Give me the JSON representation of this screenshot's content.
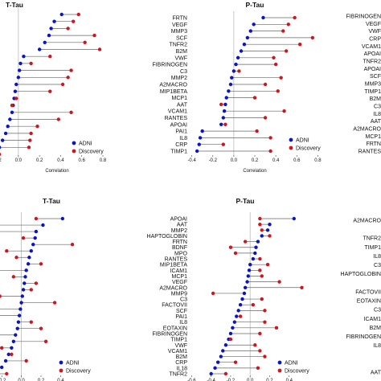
{
  "colors": {
    "adni": "#0a14c8",
    "discovery": "#d2141e",
    "segment": "#666666",
    "zero_line": "#bbbbbb",
    "axis": "#444444"
  },
  "chart_data": [
    {
      "type": "dot-plot",
      "panel": "top-left",
      "title": "T-Tau",
      "xlabel": "Correlation",
      "xlim": [
        -0.25,
        0.8
      ],
      "xticks": [
        "-0.2",
        "0.0",
        "0.2",
        "0.4",
        "0.6",
        "0.8"
      ],
      "show_y_labels": false,
      "legend": [
        "ADNI",
        "Discovery"
      ],
      "legend_position": "bottom-right",
      "categories": [
        "",
        "",
        "",
        "",
        "",
        "",
        "",
        "",
        "",
        "",
        "",
        "",
        "",
        "",
        "",
        "",
        "",
        "",
        "",
        "",
        ""
      ],
      "series": [
        {
          "name": "ADNI",
          "values": [
            0.41,
            0.34,
            0.31,
            0.29,
            0.25,
            0.2,
            0.05,
            0.02,
            0.01,
            0.0,
            -0.02,
            -0.03,
            -0.04,
            -0.05,
            -0.06,
            -0.08,
            -0.1,
            -0.12,
            -0.15,
            -0.18,
            -0.22
          ]
        },
        {
          "name": "Discovery",
          "values": [
            0.57,
            0.52,
            0.47,
            0.72,
            0.63,
            0.77,
            0.3,
            0.12,
            0.5,
            0.47,
            0.42,
            0.3,
            -0.02,
            -0.06,
            0.5,
            0.38,
            0.18,
            0.12,
            0.11,
            0.1,
            -0.18
          ]
        }
      ]
    },
    {
      "type": "dot-plot",
      "panel": "top-center",
      "title": "P-Tau",
      "xlabel": "Correlation",
      "xlim": [
        -0.42,
        0.82
      ],
      "xticks": [
        "-0.4",
        "-0.2",
        "0.0",
        "0.2",
        "0.4",
        "0.6",
        "0.8"
      ],
      "show_y_labels": true,
      "legend": [
        "ADNI",
        "Discovery"
      ],
      "legend_position": "bottom-right",
      "categories": [
        "FRTN",
        "VEGF",
        "MMP3",
        "SCF",
        "TNFR2",
        "B2M",
        "VWF",
        "FIBRINOGEN",
        "C3",
        "MMP2",
        "A2MACRO",
        "MIP1BETA",
        "MCP1",
        "AAT",
        "VCAM1",
        "RANTES",
        "APOAI",
        "PAI1",
        "IL8",
        "CRP",
        "TIMP1"
      ],
      "series": [
        {
          "name": "ADNI",
          "values": [
            0.28,
            0.19,
            0.16,
            0.13,
            0.1,
            0.07,
            0.04,
            0.02,
            0.0,
            -0.02,
            -0.03,
            -0.05,
            -0.07,
            -0.08,
            -0.09,
            -0.1,
            -0.12,
            -0.3,
            -0.32,
            -0.33,
            -0.35
          ]
        },
        {
          "name": "Discovery",
          "values": [
            0.58,
            0.52,
            0.47,
            0.75,
            0.63,
            0.5,
            0.38,
            0.4,
            0.05,
            0.45,
            0.3,
            0.42,
            0.2,
            -0.12,
            0.48,
            0.3,
            -0.08,
            0.22,
            0.35,
            -0.1,
            0.35
          ]
        }
      ]
    },
    {
      "type": "dot-plot",
      "panel": "bottom-left",
      "title": "T-Tau",
      "xlabel": "Correlation",
      "xlim": [
        -0.3,
        0.7
      ],
      "xticks": [
        "-0.2",
        "0.0",
        "0.2",
        "0.4"
      ],
      "show_y_labels": false,
      "legend": [
        "ADNI",
        "Discovery"
      ],
      "legend_position": "bottom-right",
      "categories": [
        "",
        "",
        "",
        "",
        "",
        "",
        "",
        "",
        "",
        "",
        "",
        "",
        "",
        "",
        "",
        "",
        "",
        "",
        "",
        "",
        "",
        "",
        "",
        "",
        ""
      ],
      "series": [
        {
          "name": "ADNI",
          "values": [
            0.42,
            0.22,
            0.15,
            0.14,
            0.12,
            0.1,
            0.08,
            0.07,
            0.05,
            0.04,
            0.03,
            0.02,
            0.01,
            0.0,
            -0.01,
            -0.02,
            -0.03,
            -0.04,
            -0.06,
            -0.08,
            -0.1,
            -0.13,
            -0.16,
            -0.2,
            -0.25
          ]
        },
        {
          "name": "Discovery",
          "values": [
            0.15,
            -0.38,
            -0.35,
            0.02,
            0.52,
            -0.15,
            -0.05,
            0.2,
            -0.3,
            -0.08,
            0.15,
            0.1,
            -0.22,
            0.34,
            -0.3,
            -0.25,
            0.1,
            0.2,
            -0.3,
            0.25,
            -0.2,
            -0.1,
            0.05,
            -0.28,
            -0.15
          ]
        }
      ]
    },
    {
      "type": "dot-plot",
      "panel": "bottom-center",
      "title": "P-Tau",
      "xlabel": "Correlation",
      "xlim": [
        -0.62,
        0.6
      ],
      "xticks": [
        "-0.6",
        "-0.4",
        "-0.2",
        "0.0",
        "0.2",
        "0.4"
      ],
      "show_y_labels": true,
      "legend": [
        "ADNI",
        "Discovery"
      ],
      "legend_position": "bottom-right",
      "categories": [
        "APOAI",
        "AAT",
        "MMP2",
        "HAPTOGLOBIN",
        "FRTN",
        "BDNF",
        "MPO",
        "RANTES",
        "MIP1BETA",
        "ICAM1",
        "MCP1",
        "VEGF",
        "A2MACRO",
        "MMP9",
        "C3",
        "FACTOVII",
        "SCF",
        "PAI1",
        "IL8",
        "EOTAXIN",
        "FIBRINOGEN",
        "TIMP1",
        "VWF",
        "VCAM1",
        "B2M",
        "CRP",
        "IL18",
        "TNFR2"
      ],
      "series": [
        {
          "name": "ADNI",
          "values": [
            0.45,
            0.2,
            0.18,
            0.12,
            0.08,
            0.06,
            0.05,
            0.03,
            0.0,
            -0.01,
            -0.02,
            -0.03,
            -0.05,
            -0.06,
            -0.08,
            -0.1,
            -0.12,
            -0.14,
            -0.16,
            -0.18,
            -0.2,
            -0.22,
            -0.25,
            -0.28,
            -0.3,
            -0.33,
            -0.36,
            -0.4
          ]
        },
        {
          "name": "Discovery",
          "values": [
            0.1,
            0.1,
            0.12,
            0.2,
            -0.05,
            -0.2,
            -0.15,
            0.1,
            0.18,
            0.1,
            0.12,
            0.3,
            0.53,
            -0.38,
            0.12,
            0.03,
            0.15,
            -0.1,
            0.15,
            0.27,
            0.1,
            -0.2,
            0.05,
            0.1,
            0.15,
            -0.15,
            0.08,
            -0.25
          ]
        }
      ]
    },
    {
      "type": "dot-plot",
      "panel": "top-right-partial",
      "title": "",
      "show_y_labels": true,
      "categories": [
        "FIBRINOGEN",
        "VEGF",
        "VWF",
        "CRP",
        "VCAM1",
        "APOAI",
        "TNFR2",
        "APOAI",
        "SCF",
        "MMP3",
        "TIMP1",
        "B2M",
        "C3",
        "IL8",
        "AAT",
        "A2MACRO",
        "MCP1",
        "FRTN",
        "RANTES"
      ]
    },
    {
      "type": "dot-plot",
      "panel": "bottom-right-partial",
      "title": "",
      "show_y_labels": true,
      "categories": [
        "A2MACRO",
        "",
        "TNFR2",
        "TIMP1",
        "IL8",
        "C3",
        "HAPTOGLOBIN",
        "",
        "FACTOVII",
        "EOTAXIN",
        "C3",
        "ICAM1",
        "B2M",
        "FIBRINOGEN",
        "IL8",
        "",
        "",
        "AAT"
      ]
    }
  ]
}
